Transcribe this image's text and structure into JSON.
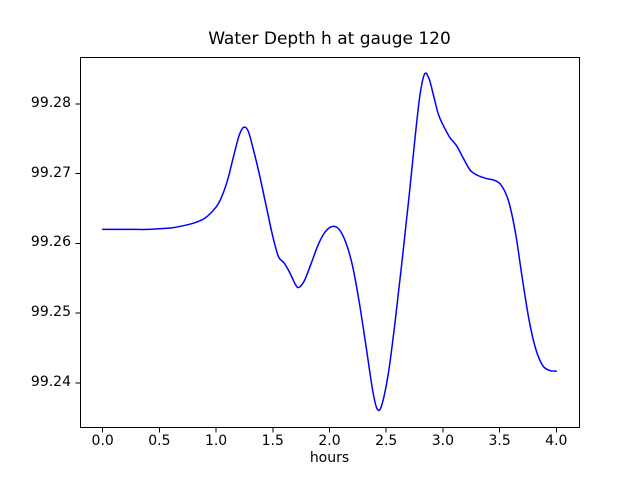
{
  "figure": {
    "background": "#ffffff",
    "text_color": "#000000",
    "axes_color": "#000000"
  },
  "chart_data": {
    "type": "line",
    "title": "Water Depth h at gauge 120",
    "xlabel": "hours",
    "ylabel": "",
    "grid": false,
    "legend": null,
    "xlim": [
      -0.2,
      4.2
    ],
    "ylim": [
      99.2337,
      99.2867
    ],
    "xticks": {
      "values": [
        0.0,
        0.5,
        1.0,
        1.5,
        2.0,
        2.5,
        3.0,
        3.5,
        4.0
      ],
      "labels": [
        "0.0",
        "0.5",
        "1.0",
        "1.5",
        "2.0",
        "2.5",
        "3.0",
        "3.5",
        "4.0"
      ]
    },
    "yticks": {
      "values": [
        99.24,
        99.25,
        99.26,
        99.27,
        99.28
      ],
      "labels": [
        "99.24",
        "99.25",
        "99.26",
        "99.27",
        "99.28"
      ]
    },
    "series": [
      {
        "name": "water-depth-line",
        "color": "#0000ff",
        "linewidth": 1.5,
        "x": [
          0.0,
          0.1,
          0.2,
          0.3,
          0.4,
          0.5,
          0.6,
          0.7,
          0.8,
          0.9,
          1.0,
          1.05,
          1.1,
          1.15,
          1.2,
          1.24,
          1.28,
          1.32,
          1.38,
          1.44,
          1.5,
          1.55,
          1.6,
          1.65,
          1.7,
          1.73,
          1.78,
          1.84,
          1.9,
          1.96,
          2.02,
          2.08,
          2.14,
          2.2,
          2.26,
          2.32,
          2.38,
          2.42,
          2.46,
          2.52,
          2.58,
          2.64,
          2.7,
          2.76,
          2.8,
          2.84,
          2.88,
          2.92,
          2.96,
          3.0,
          3.06,
          3.12,
          3.18,
          3.24,
          3.3,
          3.38,
          3.46,
          3.52,
          3.58,
          3.64,
          3.7,
          3.76,
          3.82,
          3.88,
          3.94,
          4.0
        ],
        "y": [
          99.262,
          99.262,
          99.262,
          99.262,
          99.262,
          99.2621,
          99.2622,
          99.2625,
          99.2629,
          99.2636,
          99.2652,
          99.2667,
          99.269,
          99.2722,
          99.2753,
          99.2766,
          99.2762,
          99.274,
          99.27,
          99.2655,
          99.261,
          99.2581,
          99.2572,
          99.2558,
          99.2541,
          99.2537,
          99.2547,
          99.2572,
          99.2598,
          99.2616,
          99.2624,
          99.2621,
          99.2603,
          99.257,
          99.2518,
          99.2455,
          99.239,
          99.2363,
          99.2368,
          99.2415,
          99.249,
          99.2575,
          99.2665,
          99.276,
          99.2815,
          99.2843,
          99.2835,
          99.281,
          99.2785,
          99.277,
          99.2752,
          99.274,
          99.2722,
          99.2705,
          99.2698,
          99.2693,
          99.269,
          99.2682,
          99.266,
          99.2615,
          99.255,
          99.249,
          99.2448,
          99.2425,
          99.2418,
          99.2417
        ]
      }
    ]
  }
}
